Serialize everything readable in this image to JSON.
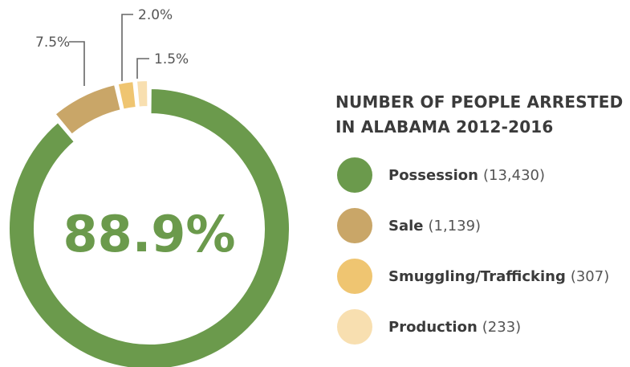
{
  "chart_data": {
    "type": "pie",
    "title_lines": [
      "NUMBER OF PEOPLE ARRESTED",
      "IN ALABAMA 2012-2016"
    ],
    "center_label": "88.9%",
    "categories": [
      "Possession",
      "Sale",
      "Smuggling/Trafficking",
      "Production"
    ],
    "values": [
      13430,
      1139,
      307,
      233
    ],
    "value_labels": [
      "(13,430)",
      "(1,139)",
      "(307)",
      "(233)"
    ],
    "percents": [
      88.9,
      7.5,
      2.0,
      1.5
    ],
    "percent_labels": [
      "88.9%",
      "7.5%",
      "2.0%",
      "1.5%"
    ],
    "colors": [
      "#6b9a4c",
      "#c9a668",
      "#efc571",
      "#f8dfb0"
    ],
    "style": "donut",
    "legend": "right"
  },
  "colors": {
    "title_text": "#3b3b3b",
    "callout_text": "#555555",
    "callout_line": "#666666"
  }
}
